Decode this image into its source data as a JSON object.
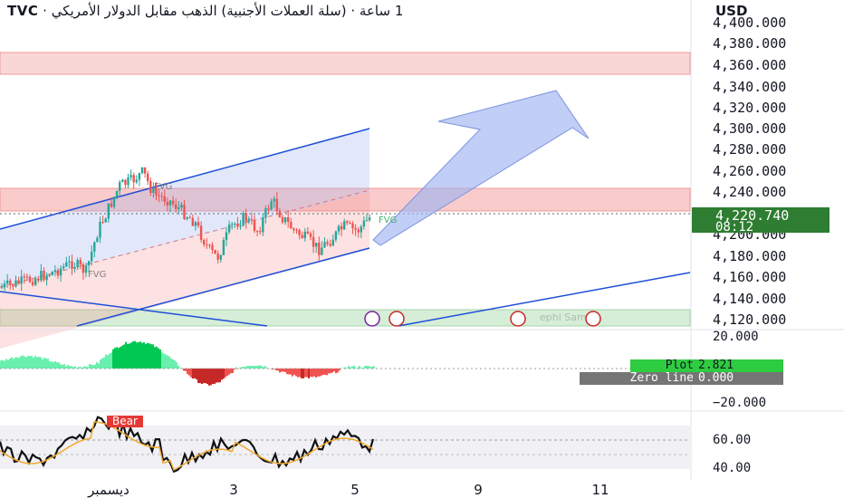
{
  "header": {
    "symbol": "TVC",
    "sep1": "·",
    "name": "(سلة العملات الأجنبية) الذهب مقابل الدولار الأمريكي",
    "sep2": "·",
    "timeframe": "1 ساعة"
  },
  "currency": "USD",
  "price_axis": [
    "4,400.000",
    "4,380.000",
    "4,360.000",
    "4,340.000",
    "4,320.000",
    "4,300.000",
    "4,280.000",
    "4,260.000",
    "4,240.000",
    "4,220.740",
    "4,200.000",
    "4,180.000",
    "4,160.000",
    "4,140.000",
    "4,120.000"
  ],
  "last_price": {
    "value": "4,220.740",
    "countdown": "08:12",
    "color": "#2e7d32"
  },
  "oscillator": {
    "axis": [
      "20.000",
      "−20.000"
    ],
    "legend": [
      {
        "name": "Plot",
        "value": "2.821"
      },
      {
        "name": "Zero line",
        "value": "0.000"
      }
    ]
  },
  "rsi_panel": {
    "axis": [
      "60.00",
      "40.00"
    ],
    "tag": "Bear"
  },
  "time_axis": [
    "ديسمبر",
    "3",
    "5",
    "9",
    "11"
  ],
  "annotations": {
    "fvg_labels": [
      "FVG",
      "FVG",
      "FVG"
    ],
    "watermark": "ephi Sam"
  },
  "colors": {
    "bull": "#26a69a",
    "bear": "#ef5350",
    "channel": "#1e4fd8",
    "zone_red": "#f28b8b",
    "zone_green": "#a5d6a7",
    "arrow": "#9fb3ef"
  }
}
